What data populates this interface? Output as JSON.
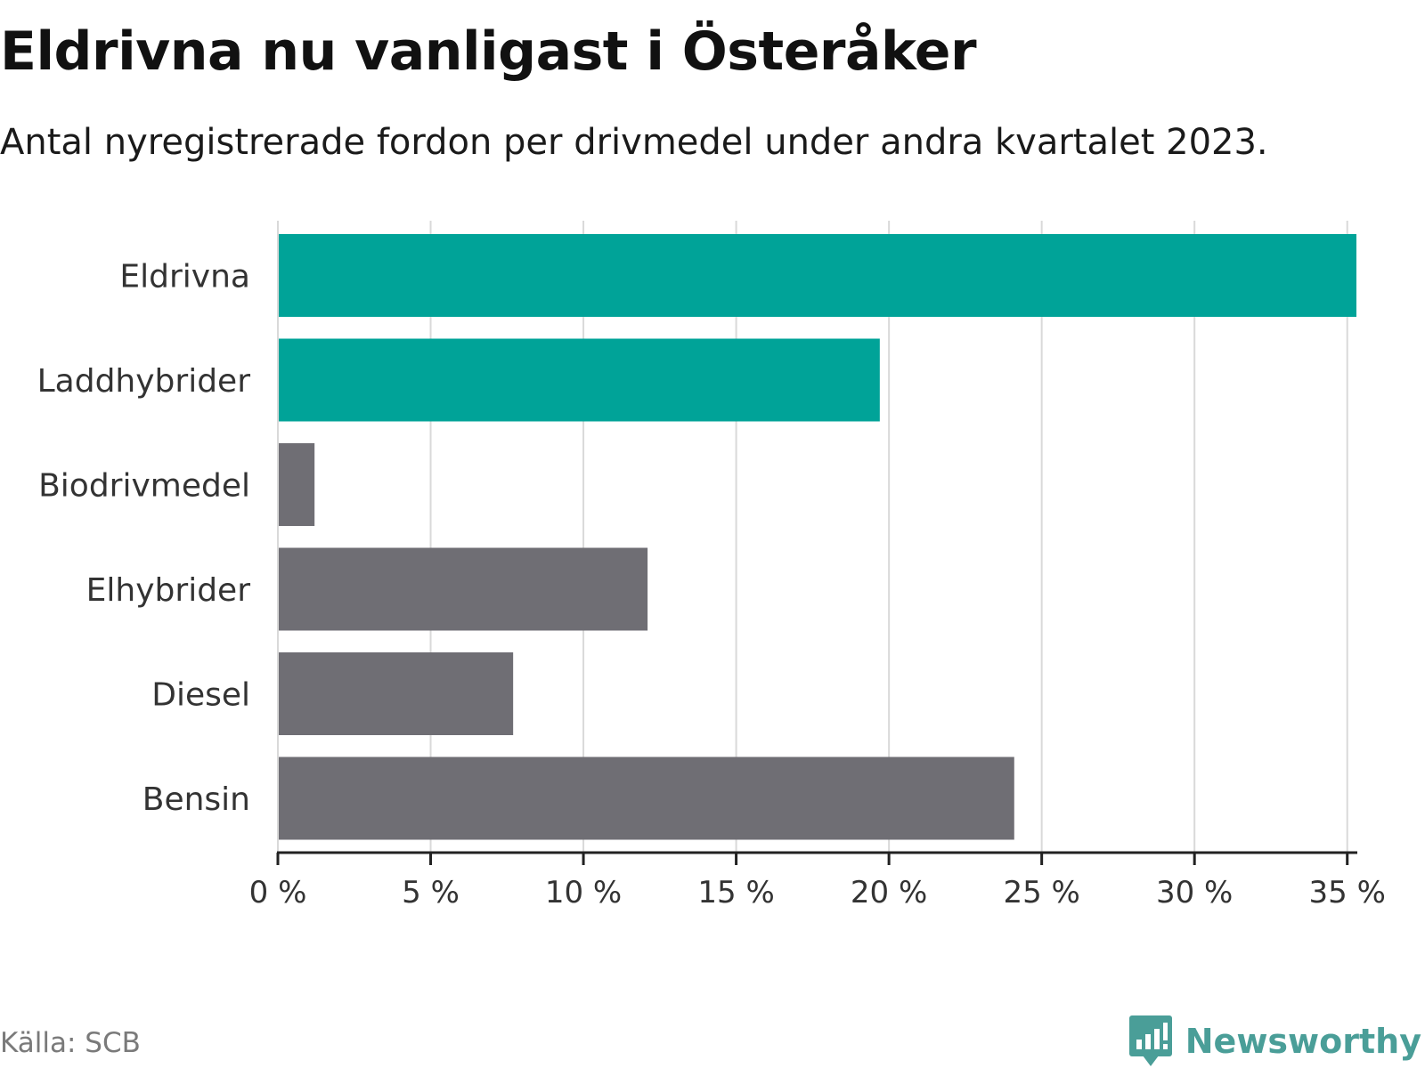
{
  "title": "Eldrivna nu vanligast i Österåker",
  "subtitle": "Antal nyregistrerade fordon per drivmedel under andra kvartalet 2023.",
  "source": "Källa: SCB",
  "brand": "Newsworthy",
  "colors": {
    "highlight": "#00a398",
    "muted": "#6f6e74",
    "grid": "#d9d9d9",
    "axis": "#222222",
    "text": "#333333"
  },
  "chart_data": {
    "type": "bar",
    "orientation": "horizontal",
    "title": "Eldrivna nu vanligast i Österåker",
    "subtitle": "Antal nyregistrerade fordon per drivmedel under andra kvartalet 2023.",
    "xlabel": "",
    "ylabel": "",
    "categories": [
      "Eldrivna",
      "Laddhybrider",
      "Biodrivmedel",
      "Elhybrider",
      "Diesel",
      "Bensin"
    ],
    "values": [
      35.3,
      19.7,
      1.2,
      12.1,
      7.7,
      24.1
    ],
    "highlighted": [
      true,
      true,
      false,
      false,
      false,
      false
    ],
    "unit": "%",
    "xlim": [
      0,
      35.3
    ],
    "ticks": [
      0,
      5,
      10,
      15,
      20,
      25,
      30,
      35
    ],
    "tick_labels": [
      "0 %",
      "5 %",
      "10 %",
      "15 %",
      "20 %",
      "25 %",
      "30 %",
      "35 %"
    ],
    "grid": true
  }
}
